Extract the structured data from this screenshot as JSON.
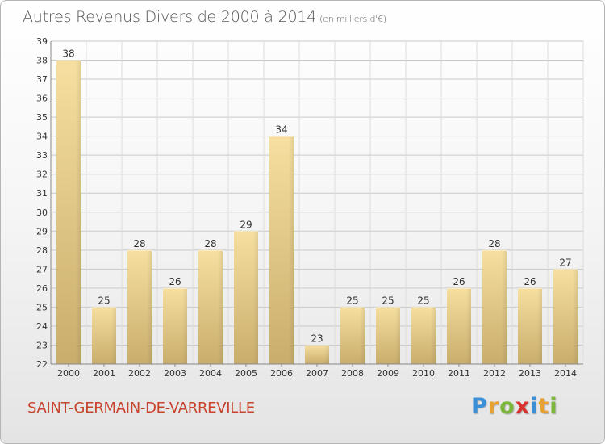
{
  "header": {
    "title": "Autres Revenus Divers de 2000 à 2014",
    "unit": "(en milliers d'€)"
  },
  "footer": {
    "commune": "SAINT-GERMAIN-DE-VARREVILLE",
    "logo_letters": [
      "P",
      "r",
      "o",
      "x",
      "i",
      "t",
      "i"
    ],
    "logo_colors": [
      "#3a8fd6",
      "#e8a030",
      "#7bb83a",
      "#d8322e",
      "#3a8fd6",
      "#e8a030",
      "#7bb83a"
    ]
  },
  "colors": {
    "bar_light": "#f6dfa0",
    "bar_dark": "#c9ad6c",
    "grid": "#c9c9c9",
    "axis_text": "#333333",
    "commune": "#c8442c"
  },
  "chart_data": {
    "type": "bar",
    "title": "Autres Revenus Divers de 2000 à 2014",
    "subtitle": "(en milliers d'€)",
    "categories": [
      "2000",
      "2001",
      "2002",
      "2003",
      "2004",
      "2005",
      "2006",
      "2007",
      "2008",
      "2009",
      "2010",
      "2011",
      "2012",
      "2013",
      "2014"
    ],
    "values": [
      38,
      25,
      28,
      26,
      28,
      29,
      34,
      23,
      25,
      25,
      25,
      26,
      28,
      26,
      27
    ],
    "ylim": [
      22,
      39
    ],
    "yticks": [
      22,
      23,
      24,
      25,
      26,
      27,
      28,
      29,
      30,
      31,
      32,
      33,
      34,
      35,
      36,
      37,
      38,
      39
    ],
    "grid": true,
    "xlabel": "",
    "ylabel": ""
  }
}
